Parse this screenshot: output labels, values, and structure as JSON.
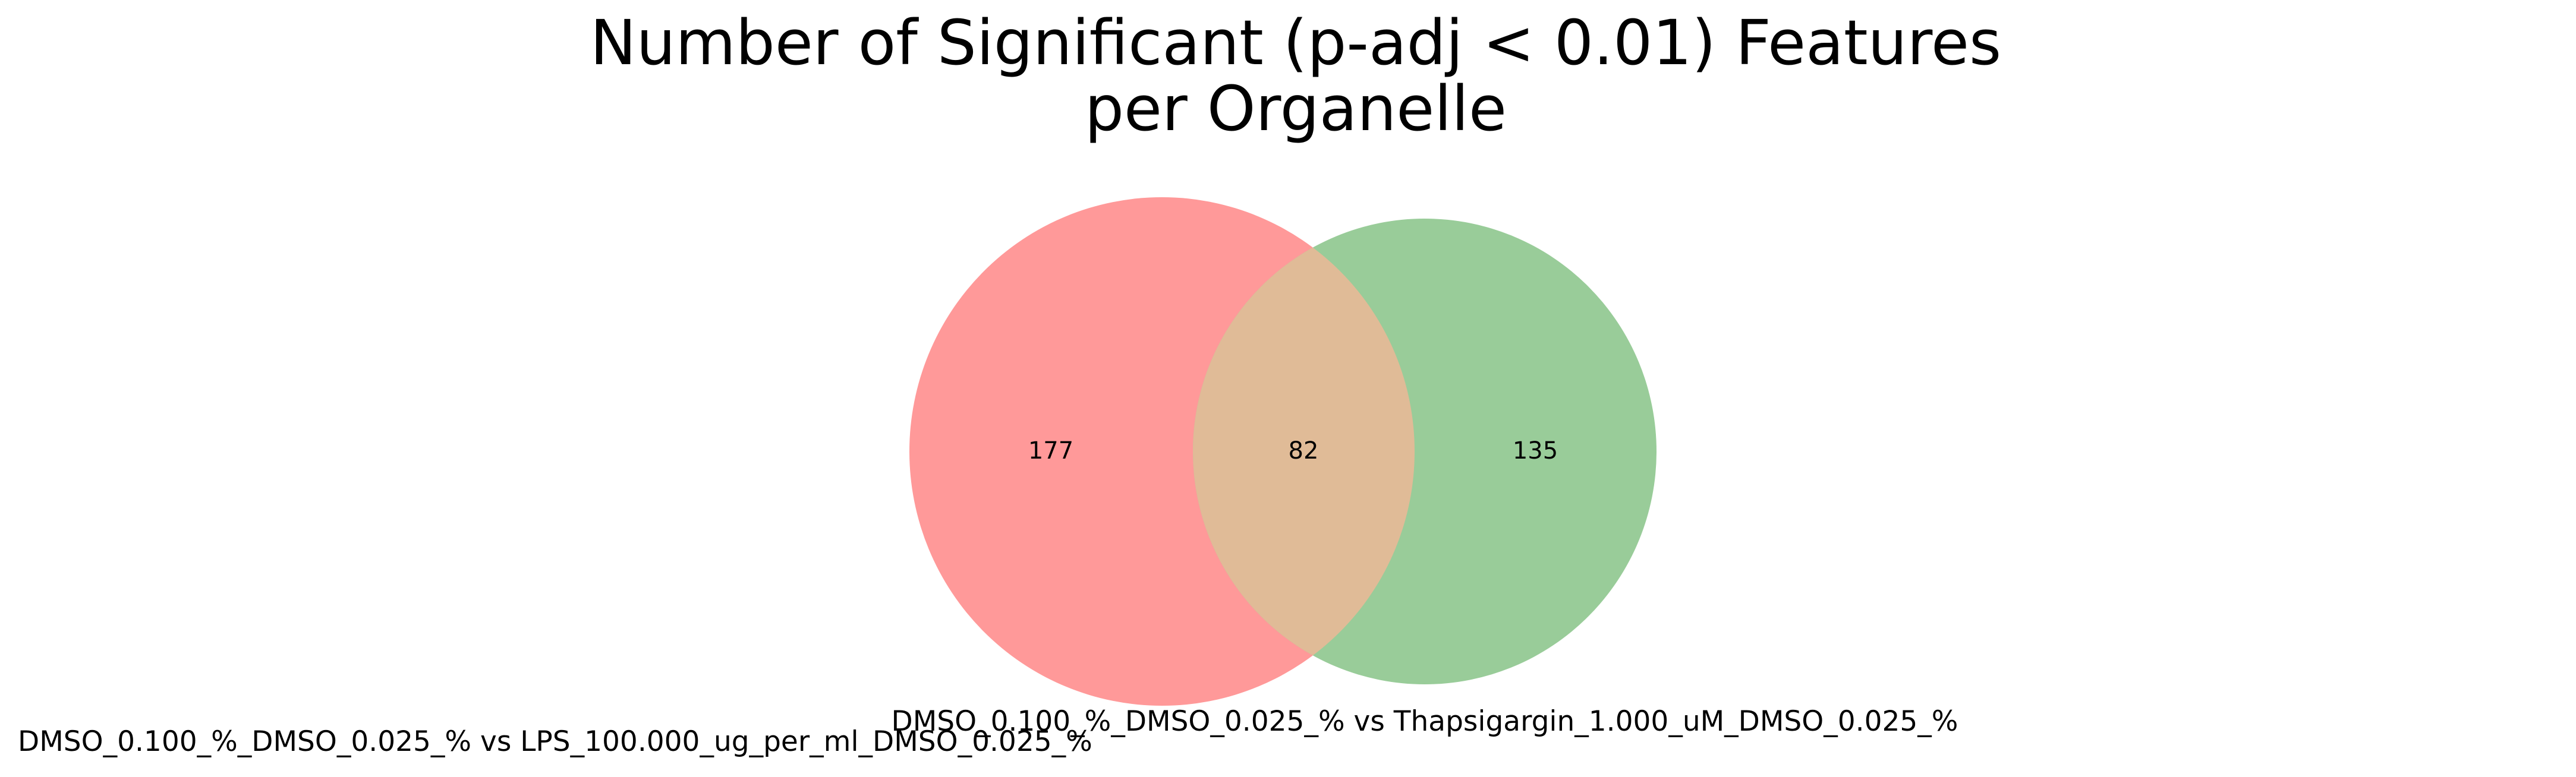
{
  "chart": {
    "title_lines": [
      "Number of Significant (p-adj < 0.01) Features",
      "per Organelle"
    ]
  },
  "chart_data": {
    "type": "venn",
    "sets": [
      {
        "label": "DMSO_0.100_%_DMSO_0.025_% vs LPS_100.000_ug_per_ml_DMSO_0.025_%",
        "only_count": 177,
        "color": "#ff9999"
      },
      {
        "label": "DMSO_0.100_%_DMSO_0.025_% vs Thapsigargin_1.000_uM_DMSO_0.025_%",
        "only_count": 135,
        "color": "#99cc99"
      }
    ],
    "intersection_count": 82,
    "intersection_color": "#e0bb97"
  }
}
